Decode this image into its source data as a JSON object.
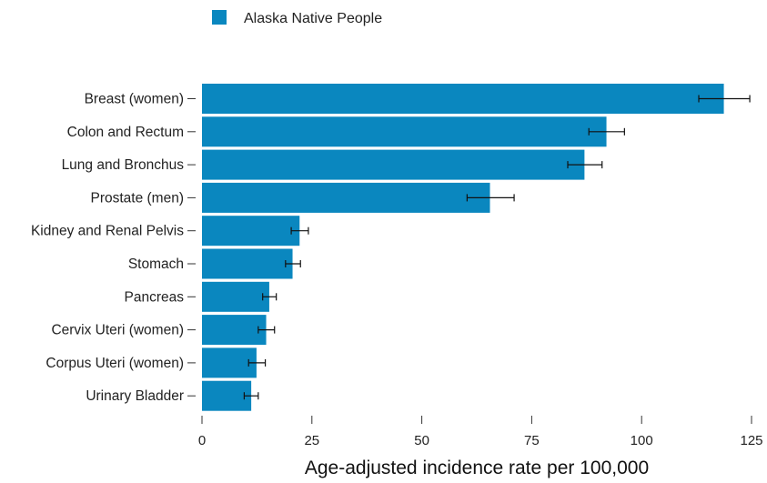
{
  "chart_data": {
    "type": "bar",
    "orientation": "horizontal",
    "categories": [
      "Breast (women)",
      "Colon and Rectum",
      "Lung and Bronchus",
      "Prostate (men)",
      "Kidney and Renal Pelvis",
      "Stomach",
      "Pancreas",
      "Cervix Uteri (women)",
      "Corpus Uteri (women)",
      "Urinary Bladder"
    ],
    "series": [
      {
        "name": "Alaska Native People",
        "color": "#0a87bf",
        "values": [
          118.7,
          92.0,
          87.0,
          65.5,
          22.2,
          20.6,
          15.3,
          14.6,
          12.4,
          11.2
        ],
        "error_low": [
          113.0,
          88.0,
          83.2,
          60.3,
          20.3,
          19.0,
          13.8,
          12.8,
          10.6,
          9.6
        ],
        "error_high": [
          124.6,
          96.1,
          91.0,
          71.0,
          24.2,
          22.4,
          16.9,
          16.5,
          14.4,
          12.8
        ]
      }
    ],
    "xlabel": "Age-adjusted incidence rate per 100,000",
    "xlim": [
      0,
      125
    ],
    "xticks": [
      0,
      25,
      50,
      75,
      100,
      125
    ],
    "legend_position": "top-left",
    "grid": false
  }
}
